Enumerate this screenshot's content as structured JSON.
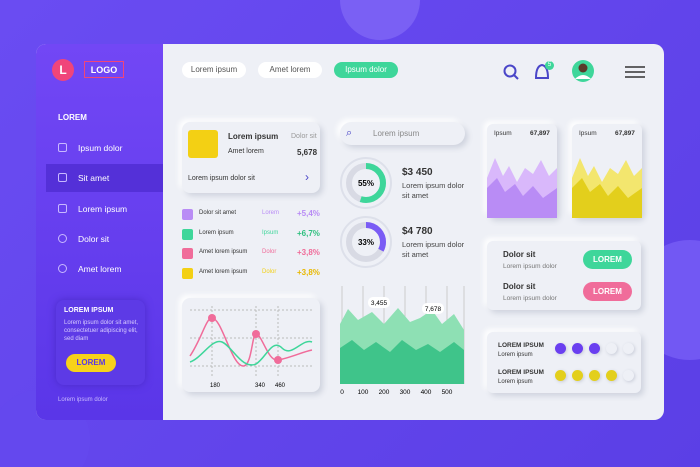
{
  "sidebar": {
    "logo_letter": "L",
    "logo": "LOGO",
    "section": "LOREM",
    "menu": [
      "Ipsum dolor",
      "Sit amet",
      "Lorem ipsum",
      "Dolor sit",
      "Amet lorem"
    ],
    "card": {
      "title": "LOREM IPSUM",
      "text": "Lorem ipsum dolor sit amet, consectetuer adipiscing elit, sed diam",
      "button": "LOREM"
    },
    "footer": "Lorem ipsum dolor"
  },
  "topbar": {
    "tabs": [
      "Lorem ipsum",
      "Amet lorem",
      "Ipsum dolor"
    ],
    "notifications": "5"
  },
  "summary_card": {
    "title": "Lorem ipsum",
    "subtitle": "Dolor sit",
    "label": "Amet lorem",
    "value": "5,678",
    "link": "Lorem ipsum dolor sit"
  },
  "stats": [
    {
      "name": "Dolor sit amet",
      "tag": "Lorem",
      "change": "+5,4%"
    },
    {
      "name": "Lorem ipsum",
      "tag": "Ipsum",
      "change": "+6,7%"
    },
    {
      "name": "Amet lorem ipsum",
      "tag": "Dolor",
      "change": "+3,8%"
    },
    {
      "name": "Amet lorem ipsum",
      "tag": "Dolor",
      "change": "+3,8%"
    }
  ],
  "line_chart": {
    "xticks": [
      "180",
      "340",
      "460"
    ]
  },
  "search": {
    "placeholder": "Lorem ipsum"
  },
  "donuts": [
    {
      "percent": 55,
      "label": "55%",
      "amount": "$3 450",
      "text": "Lorem ipsum dolor sit amet"
    },
    {
      "percent": 33,
      "label": "33%",
      "amount": "$4 780",
      "text": "Lorem ipsum dolor sit amet"
    }
  ],
  "area_chart": {
    "xticks": [
      "0",
      "100",
      "200",
      "300",
      "400",
      "500"
    ],
    "annotations": [
      "3,455",
      "7,678"
    ]
  },
  "mini_charts": [
    {
      "title": "Ipsum",
      "value": "67,897"
    },
    {
      "title": "Ipsum",
      "value": "67,897"
    }
  ],
  "actions": [
    {
      "title": "Dolor sit",
      "text": "Lorem ipsum dolor",
      "button": "LOREM"
    },
    {
      "title": "Dolor sit",
      "text": "Lorem ipsum dolor",
      "button": "LOREM"
    }
  ],
  "toggles": [
    {
      "title": "LOREM IPSUM",
      "text": "Lorem ipsum"
    },
    {
      "title": "LOREM IPSUM",
      "text": "Lorem ipsum"
    }
  ]
}
